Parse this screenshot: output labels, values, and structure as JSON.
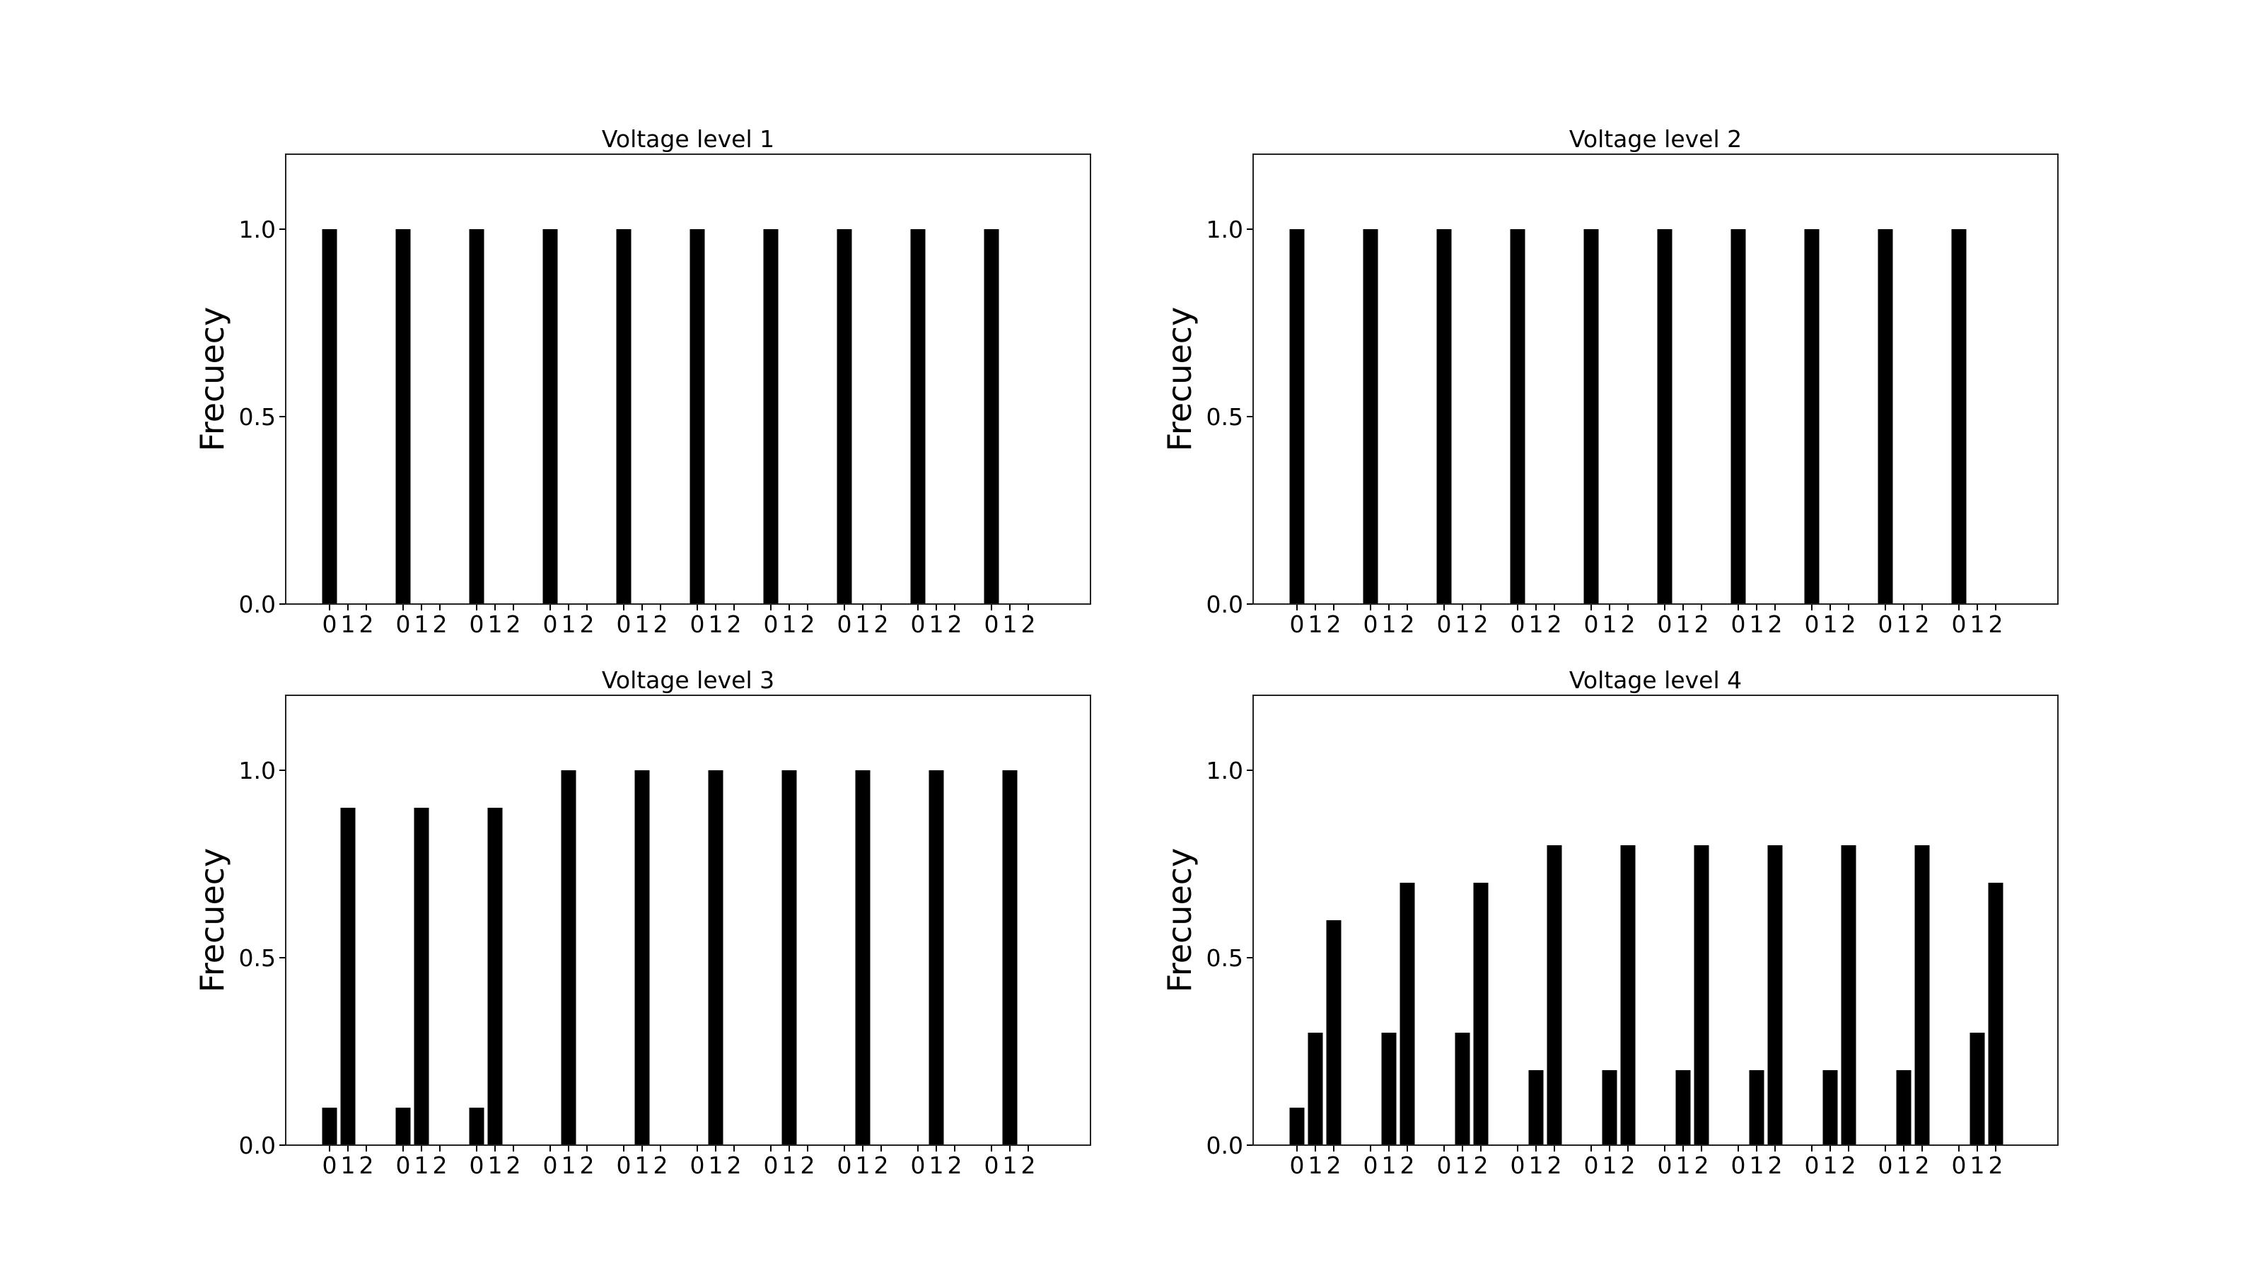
{
  "colors": {
    "bar": "#000000",
    "axis": "#000000",
    "frame": "#222222",
    "background": "#ffffff"
  },
  "chart_data": [
    {
      "type": "bar",
      "title": "Voltage level 1",
      "xlabel": "",
      "ylabel": "Frecuecy",
      "ylim": [
        0,
        1.2
      ],
      "yticks": [
        "0.0",
        "0.5",
        "1.0"
      ],
      "group_tick_labels": [
        "0",
        "1",
        "2"
      ],
      "groups": 10,
      "grid": false,
      "series_by_group": [
        [
          1.0,
          0.0,
          0.0
        ],
        [
          1.0,
          0.0,
          0.0
        ],
        [
          1.0,
          0.0,
          0.0
        ],
        [
          1.0,
          0.0,
          0.0
        ],
        [
          1.0,
          0.0,
          0.0
        ],
        [
          1.0,
          0.0,
          0.0
        ],
        [
          1.0,
          0.0,
          0.0
        ],
        [
          1.0,
          0.0,
          0.0
        ],
        [
          1.0,
          0.0,
          0.0
        ],
        [
          1.0,
          0.0,
          0.0
        ]
      ]
    },
    {
      "type": "bar",
      "title": "Voltage level 2",
      "xlabel": "",
      "ylabel": "Frecuecy",
      "ylim": [
        0,
        1.2
      ],
      "yticks": [
        "0.0",
        "0.5",
        "1.0"
      ],
      "group_tick_labels": [
        "0",
        "1",
        "2"
      ],
      "groups": 10,
      "grid": false,
      "series_by_group": [
        [
          1.0,
          0.0,
          0.0
        ],
        [
          1.0,
          0.0,
          0.0
        ],
        [
          1.0,
          0.0,
          0.0
        ],
        [
          1.0,
          0.0,
          0.0
        ],
        [
          1.0,
          0.0,
          0.0
        ],
        [
          1.0,
          0.0,
          0.0
        ],
        [
          1.0,
          0.0,
          0.0
        ],
        [
          1.0,
          0.0,
          0.0
        ],
        [
          1.0,
          0.0,
          0.0
        ],
        [
          1.0,
          0.0,
          0.0
        ]
      ]
    },
    {
      "type": "bar",
      "title": "Voltage level 3",
      "xlabel": "",
      "ylabel": "Frecuecy",
      "ylim": [
        0,
        1.2
      ],
      "yticks": [
        "0.0",
        "0.5",
        "1.0"
      ],
      "group_tick_labels": [
        "0",
        "1",
        "2"
      ],
      "groups": 10,
      "grid": false,
      "series_by_group": [
        [
          0.1,
          0.9,
          0.0
        ],
        [
          0.1,
          0.9,
          0.0
        ],
        [
          0.1,
          0.9,
          0.0
        ],
        [
          0.0,
          1.0,
          0.0
        ],
        [
          0.0,
          1.0,
          0.0
        ],
        [
          0.0,
          1.0,
          0.0
        ],
        [
          0.0,
          1.0,
          0.0
        ],
        [
          0.0,
          1.0,
          0.0
        ],
        [
          0.0,
          1.0,
          0.0
        ],
        [
          0.0,
          1.0,
          0.0
        ]
      ]
    },
    {
      "type": "bar",
      "title": "Voltage level 4",
      "xlabel": "",
      "ylabel": "Frecuecy",
      "ylim": [
        0,
        1.2
      ],
      "yticks": [
        "0.0",
        "0.5",
        "1.0"
      ],
      "group_tick_labels": [
        "0",
        "1",
        "2"
      ],
      "groups": 10,
      "grid": false,
      "series_by_group": [
        [
          0.1,
          0.3,
          0.6
        ],
        [
          0.0,
          0.3,
          0.7
        ],
        [
          0.0,
          0.3,
          0.7
        ],
        [
          0.0,
          0.2,
          0.8
        ],
        [
          0.0,
          0.2,
          0.8
        ],
        [
          0.0,
          0.2,
          0.8
        ],
        [
          0.0,
          0.2,
          0.8
        ],
        [
          0.0,
          0.2,
          0.8
        ],
        [
          0.0,
          0.2,
          0.8
        ],
        [
          0.0,
          0.3,
          0.7
        ]
      ]
    }
  ]
}
